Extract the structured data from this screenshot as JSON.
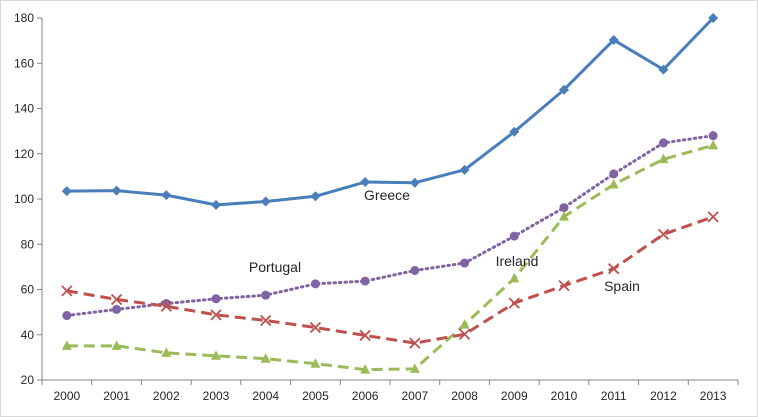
{
  "chart_data": {
    "type": "line",
    "title": "",
    "xlabel": "",
    "ylabel": "",
    "x": [
      "2000",
      "2001",
      "2002",
      "2003",
      "2004",
      "2005",
      "2006",
      "2007",
      "2008",
      "2009",
      "2010",
      "2011",
      "2012",
      "2013"
    ],
    "ylim": [
      20,
      180
    ],
    "yticks": [
      20,
      40,
      60,
      80,
      100,
      120,
      140,
      160,
      180
    ],
    "grid": false,
    "legend": "none (series labelled inline)",
    "series": [
      {
        "name": "Greece",
        "values": [
          103.5,
          103.7,
          101.7,
          97.4,
          98.9,
          101.2,
          107.5,
          107.2,
          112.9,
          129.7,
          148.3,
          170.3,
          157.2,
          180.0
        ],
        "color": "#4a7ebb",
        "marker": "diamond",
        "dash": "solid"
      },
      {
        "name": "Portugal",
        "values": [
          48.5,
          51.2,
          53.8,
          55.9,
          57.5,
          62.5,
          63.7,
          68.4,
          71.7,
          83.6,
          96.2,
          111.1,
          124.8,
          128.0
        ],
        "color": "#7f63a2",
        "marker": "circle",
        "dash": "dotted"
      },
      {
        "name": "Ireland",
        "values": [
          35.1,
          35.1,
          32.0,
          30.7,
          29.4,
          27.2,
          24.6,
          24.9,
          44.5,
          64.9,
          92.2,
          106.4,
          117.6,
          123.7
        ],
        "color": "#9bbb59",
        "marker": "triangle",
        "dash": "dashed"
      },
      {
        "name": "Spain",
        "values": [
          59.4,
          55.6,
          52.6,
          48.8,
          46.3,
          43.2,
          39.7,
          36.3,
          40.2,
          54.0,
          61.7,
          69.2,
          84.4,
          92.1
        ],
        "color": "#c0504d",
        "marker": "x",
        "dash": "dashed"
      }
    ],
    "annotations": [
      {
        "text": "Greece",
        "series": "Greece"
      },
      {
        "text": "Portugal",
        "series": "Portugal"
      },
      {
        "text": "Ireland",
        "series": "Ireland"
      },
      {
        "text": "Spain",
        "series": "Spain"
      }
    ]
  }
}
